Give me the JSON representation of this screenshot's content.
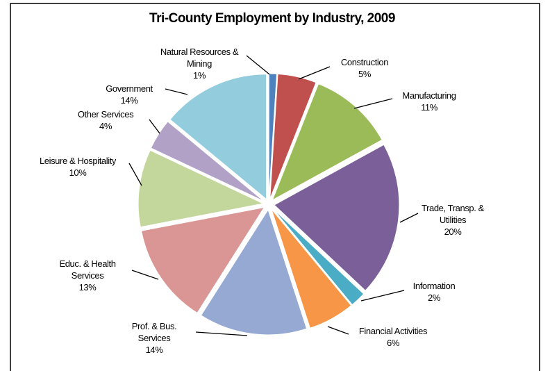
{
  "chart_data": {
    "type": "pie",
    "title": "Tri-County Employment by Industry, 2009",
    "categories": [
      "Natural Resources & Mining",
      "Construction",
      "Manufacturing",
      "Trade, Transp. & Utilities",
      "Information",
      "Financial Activities",
      "Prof. & Bus. Services",
      "Educ. & Health Services",
      "Leisure & Hospitality",
      "Other Services",
      "Government"
    ],
    "values": [
      1,
      5,
      11,
      20,
      2,
      6,
      14,
      13,
      10,
      4,
      14
    ],
    "value_labels": [
      "1%",
      "5%",
      "11%",
      "20%",
      "2%",
      "6%",
      "14%",
      "13%",
      "10%",
      "4%",
      "14%"
    ],
    "colors": [
      "#4f81bd",
      "#c0504d",
      "#9bbb59",
      "#7a5f98",
      "#4bacc6",
      "#f79646",
      "#95a9d3",
      "#d99694",
      "#c3d69b",
      "#b2a1c7",
      "#93cddd"
    ]
  }
}
